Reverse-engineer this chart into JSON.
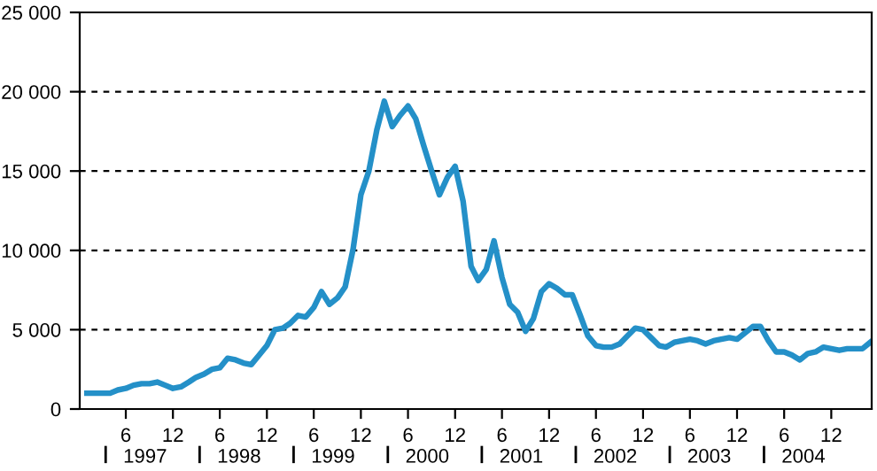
{
  "chart_data": {
    "type": "line",
    "x": [
      "1997-01",
      "1997-02",
      "1997-03",
      "1997-04",
      "1997-05",
      "1997-06",
      "1997-07",
      "1997-08",
      "1997-09",
      "1997-10",
      "1997-11",
      "1997-12",
      "1998-01",
      "1998-02",
      "1998-03",
      "1998-04",
      "1998-05",
      "1998-06",
      "1998-07",
      "1998-08",
      "1998-09",
      "1998-10",
      "1998-11",
      "1998-12",
      "1999-01",
      "1999-02",
      "1999-03",
      "1999-04",
      "1999-05",
      "1999-06",
      "1999-07",
      "1999-08",
      "1999-09",
      "1999-10",
      "1999-11",
      "1999-12",
      "2000-01",
      "2000-02",
      "2000-03",
      "2000-04",
      "2000-05",
      "2000-06",
      "2000-07",
      "2000-08",
      "2000-09",
      "2000-10",
      "2000-11",
      "2000-12",
      "2001-01",
      "2001-02",
      "2001-03",
      "2001-04",
      "2001-05",
      "2001-06",
      "2001-07",
      "2001-08",
      "2001-09",
      "2001-10",
      "2001-11",
      "2001-12",
      "2002-01",
      "2002-02",
      "2002-03",
      "2002-04",
      "2002-05",
      "2002-06",
      "2002-07",
      "2002-08",
      "2002-09",
      "2002-10",
      "2002-11",
      "2002-12",
      "2003-01",
      "2003-02",
      "2003-03",
      "2003-04",
      "2003-05",
      "2003-06",
      "2003-07",
      "2003-08",
      "2003-09",
      "2003-10",
      "2003-11",
      "2003-12",
      "2004-01",
      "2004-02",
      "2004-03",
      "2004-04",
      "2004-05",
      "2004-06",
      "2004-07",
      "2004-08",
      "2004-09",
      "2004-10",
      "2004-11",
      "2004-12",
      "2005-01",
      "2005-02",
      "2005-03",
      "2005-04",
      "2005-05"
    ],
    "series": [
      {
        "color": "#2490c8",
        "values": [
          1000,
          1000,
          1000,
          1000,
          1200,
          1300,
          1500,
          1600,
          1600,
          1700,
          1500,
          1300,
          1400,
          1700,
          2000,
          2200,
          2500,
          2600,
          3200,
          3100,
          2900,
          2800,
          3400,
          4000,
          5000,
          5100,
          5400,
          5900,
          5800,
          6400,
          7400,
          6600,
          7000,
          7700,
          10100,
          13500,
          15000,
          17600,
          19400,
          17800,
          18500,
          19100,
          18300,
          16600,
          15000,
          13500,
          14600,
          15300,
          13100,
          9000,
          8100,
          8800,
          10600,
          8300,
          6600,
          6100,
          4900,
          5700,
          7400,
          7900,
          7600,
          7200,
          7200,
          5900,
          4600,
          4000,
          3900,
          3900,
          4100,
          4600,
          5100,
          5000,
          4500,
          4000,
          3900,
          4200,
          4300,
          4400,
          4300,
          4100,
          4300,
          4400,
          4500,
          4400,
          4800,
          5200,
          5200,
          4300,
          3600,
          3600,
          3400,
          3100,
          3500,
          3600,
          3900,
          3800,
          3700,
          3800,
          3800,
          3800,
          4200
        ]
      }
    ],
    "xlim": [
      "1996-12-04",
      "2005-05-07"
    ],
    "xticks": [
      {
        "value": "1997-06",
        "label": "6"
      },
      {
        "value": "1997-12",
        "label": "12"
      },
      {
        "value": "1998-06",
        "label": "6"
      },
      {
        "value": "1998-12",
        "label": "12"
      },
      {
        "value": "1999-06",
        "label": "6"
      },
      {
        "value": "1999-12",
        "label": "12"
      },
      {
        "value": "2000-06",
        "label": "6"
      },
      {
        "value": "2000-12",
        "label": "12"
      },
      {
        "value": "2001-06",
        "label": "6"
      },
      {
        "value": "2001-12",
        "label": "12"
      },
      {
        "value": "2002-06",
        "label": "6"
      },
      {
        "value": "2002-12",
        "label": "12"
      },
      {
        "value": "2003-06",
        "label": "6"
      },
      {
        "value": "2003-12",
        "label": "12"
      },
      {
        "value": "2004-06",
        "label": "6"
      },
      {
        "value": "2004-12",
        "label": "12"
      }
    ],
    "x2lim": [
      "1996-12-04",
      "2005-05-07"
    ],
    "x2ticks": [
      {
        "value": "1997-08-15",
        "label": "1997"
      },
      {
        "value": "1998-08-15",
        "label": "1998"
      },
      {
        "value": "1999-08-15",
        "label": "1999"
      },
      {
        "value": "2000-08-15",
        "label": "2000"
      },
      {
        "value": "2001-08-15",
        "label": "2001"
      },
      {
        "value": "2002-08-15",
        "label": "2002"
      },
      {
        "value": "2003-08-15",
        "label": "2003"
      },
      {
        "value": "2004-08-15",
        "label": "2004"
      }
    ],
    "ylim": [
      0,
      25000
    ],
    "yticks": [
      0,
      {
        "value": 5000,
        "label": "5 000"
      },
      {
        "value": 10000,
        "label": "10 000"
      },
      {
        "value": 15000,
        "label": "15 000"
      },
      {
        "value": 20000,
        "label": "20 000"
      },
      {
        "value": 25000,
        "label": "25 000"
      }
    ],
    "grid": "y",
    "marker": "none",
    "line_style": "solid"
  }
}
